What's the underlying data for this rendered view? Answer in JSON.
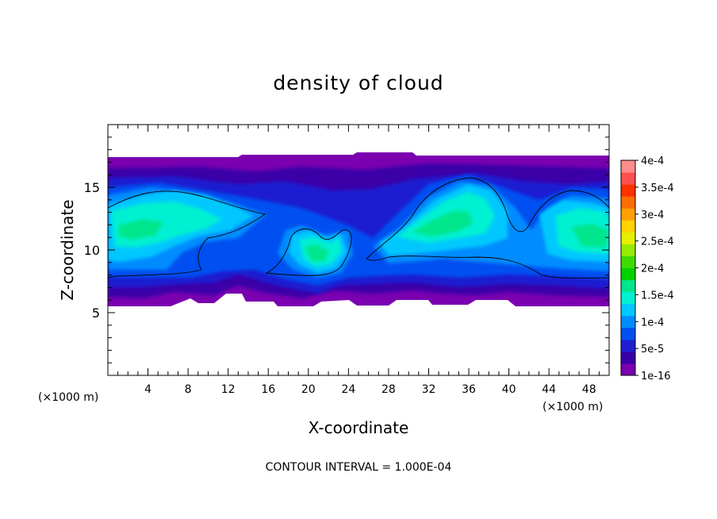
{
  "chart_data": {
    "type": "heatmap",
    "title": "density of cloud",
    "xlabel": "X-coordinate",
    "ylabel": "Z-coordinate",
    "x_unit": "(×1000 m)",
    "z_unit": "(×1000 m)",
    "xlim": [
      0,
      50
    ],
    "ylim": [
      0,
      20
    ],
    "x_ticks": [
      "4",
      "8",
      "12",
      "16",
      "20",
      "24",
      "28",
      "32",
      "36",
      "40",
      "44",
      "48"
    ],
    "y_ticks": [
      "5",
      "10",
      "15"
    ],
    "footer": "CONTOUR INTERVAL = 1.000E-04",
    "colorbar": {
      "labels": [
        "1e-16",
        "5e-5",
        "1e-4",
        "1.5e-4",
        "2e-4",
        "2.5e-4",
        "3e-4",
        "3.5e-4",
        "4e-4"
      ],
      "colors": [
        "#7a00b0",
        "#3a00a8",
        "#1f1fd0",
        "#0050f0",
        "#008cff",
        "#00c8ff",
        "#00f0d2",
        "#00e68c",
        "#00d200",
        "#3cdc00",
        "#96eb00",
        "#e6f000",
        "#ffd200",
        "#ffa000",
        "#ff6e00",
        "#ff3200",
        "#ff5050",
        "#ff8c8c"
      ]
    },
    "cloud_layer": {
      "base_km": [
        5.5,
        6.5
      ],
      "top_km": [
        17.0,
        17.8
      ],
      "max_density_approx": 0.00018
    }
  }
}
